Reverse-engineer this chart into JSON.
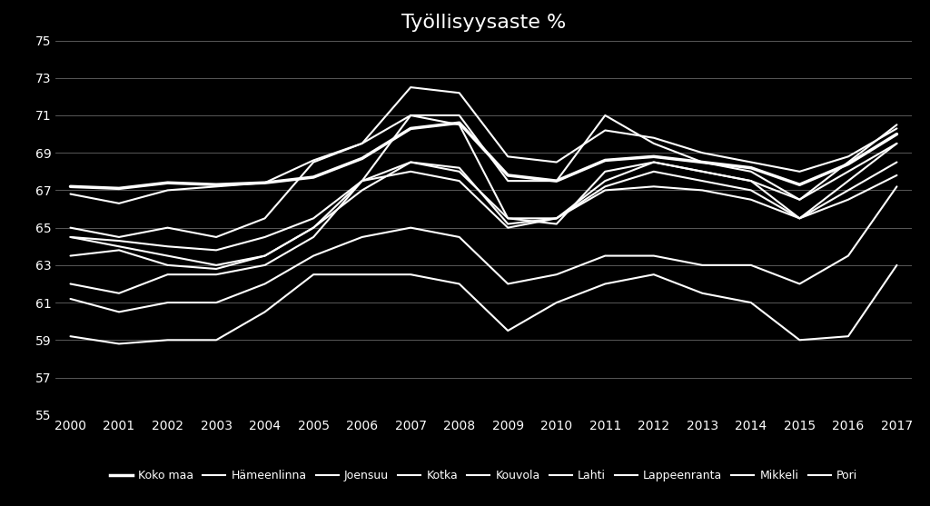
{
  "title": "Työllisyysaste %",
  "background_color": "#000000",
  "text_color": "#ffffff",
  "line_color": "#ffffff",
  "grid_color": "#666666",
  "years": [
    2000,
    2001,
    2002,
    2003,
    2004,
    2005,
    2006,
    2007,
    2008,
    2009,
    2010,
    2011,
    2012,
    2013,
    2014,
    2015,
    2016,
    2017
  ],
  "ylim": [
    55,
    75
  ],
  "yticks": [
    55,
    57,
    59,
    61,
    63,
    65,
    67,
    69,
    71,
    73,
    75
  ],
  "series": {
    "Koko maa": [
      67.2,
      67.1,
      67.4,
      67.3,
      67.4,
      67.7,
      68.7,
      70.3,
      70.6,
      67.8,
      67.5,
      68.6,
      68.8,
      68.5,
      68.2,
      67.3,
      68.4,
      70.0
    ],
    "Hämeenlinna": [
      66.8,
      66.3,
      67.0,
      67.2,
      67.4,
      68.6,
      69.5,
      72.5,
      72.2,
      68.8,
      68.5,
      70.2,
      69.8,
      69.0,
      68.5,
      68.0,
      68.8,
      70.3
    ],
    "Joensuu": [
      63.5,
      63.8,
      63.0,
      62.8,
      63.5,
      65.0,
      67.0,
      68.5,
      68.2,
      65.2,
      65.5,
      67.2,
      68.0,
      67.5,
      67.0,
      65.5,
      67.0,
      68.5
    ],
    "Kotka": [
      64.5,
      64.3,
      64.0,
      63.8,
      64.5,
      65.5,
      67.5,
      68.0,
      67.5,
      65.0,
      65.5,
      67.0,
      67.2,
      67.0,
      66.5,
      65.5,
      66.5,
      67.8
    ],
    "Kouvola": [
      59.2,
      58.8,
      59.0,
      59.0,
      60.5,
      62.5,
      62.5,
      62.5,
      62.0,
      59.5,
      61.0,
      62.0,
      62.5,
      61.5,
      61.0,
      59.0,
      59.2,
      63.0
    ],
    "Lahti": [
      62.0,
      61.5,
      62.5,
      62.5,
      63.0,
      64.5,
      67.5,
      71.0,
      70.5,
      65.5,
      65.2,
      68.0,
      68.5,
      68.0,
      67.5,
      65.5,
      67.5,
      69.5
    ],
    "Lappeenranta": [
      65.0,
      64.5,
      65.0,
      64.5,
      65.5,
      68.5,
      69.5,
      71.0,
      71.0,
      67.5,
      67.5,
      71.0,
      69.5,
      68.5,
      68.0,
      66.5,
      68.5,
      70.5
    ],
    "Mikkeli": [
      64.5,
      64.0,
      63.5,
      63.0,
      63.5,
      65.0,
      67.5,
      68.5,
      68.0,
      65.5,
      65.5,
      67.5,
      68.5,
      68.0,
      67.5,
      66.5,
      68.0,
      69.5
    ],
    "Pori": [
      61.2,
      60.5,
      61.0,
      61.0,
      62.0,
      63.5,
      64.5,
      65.0,
      64.5,
      62.0,
      62.5,
      63.5,
      63.5,
      63.0,
      63.0,
      62.0,
      63.5,
      67.2
    ]
  },
  "linewidths": {
    "Koko maa": 2.5,
    "Hämeenlinna": 1.5,
    "Joensuu": 1.5,
    "Kotka": 1.5,
    "Kouvola": 1.5,
    "Lahti": 1.5,
    "Lappeenranta": 1.5,
    "Mikkeli": 1.5,
    "Pori": 1.5
  },
  "legend_order": [
    "Koko maa",
    "Hämeenlinna",
    "Joensuu",
    "Kotka",
    "Kouvola",
    "Lahti",
    "Lappeenranta",
    "Mikkeli",
    "Pori"
  ],
  "figsize": [
    10.24,
    5.57
  ],
  "dpi": 100,
  "title_fontsize": 16,
  "tick_fontsize": 10,
  "legend_fontsize": 9
}
